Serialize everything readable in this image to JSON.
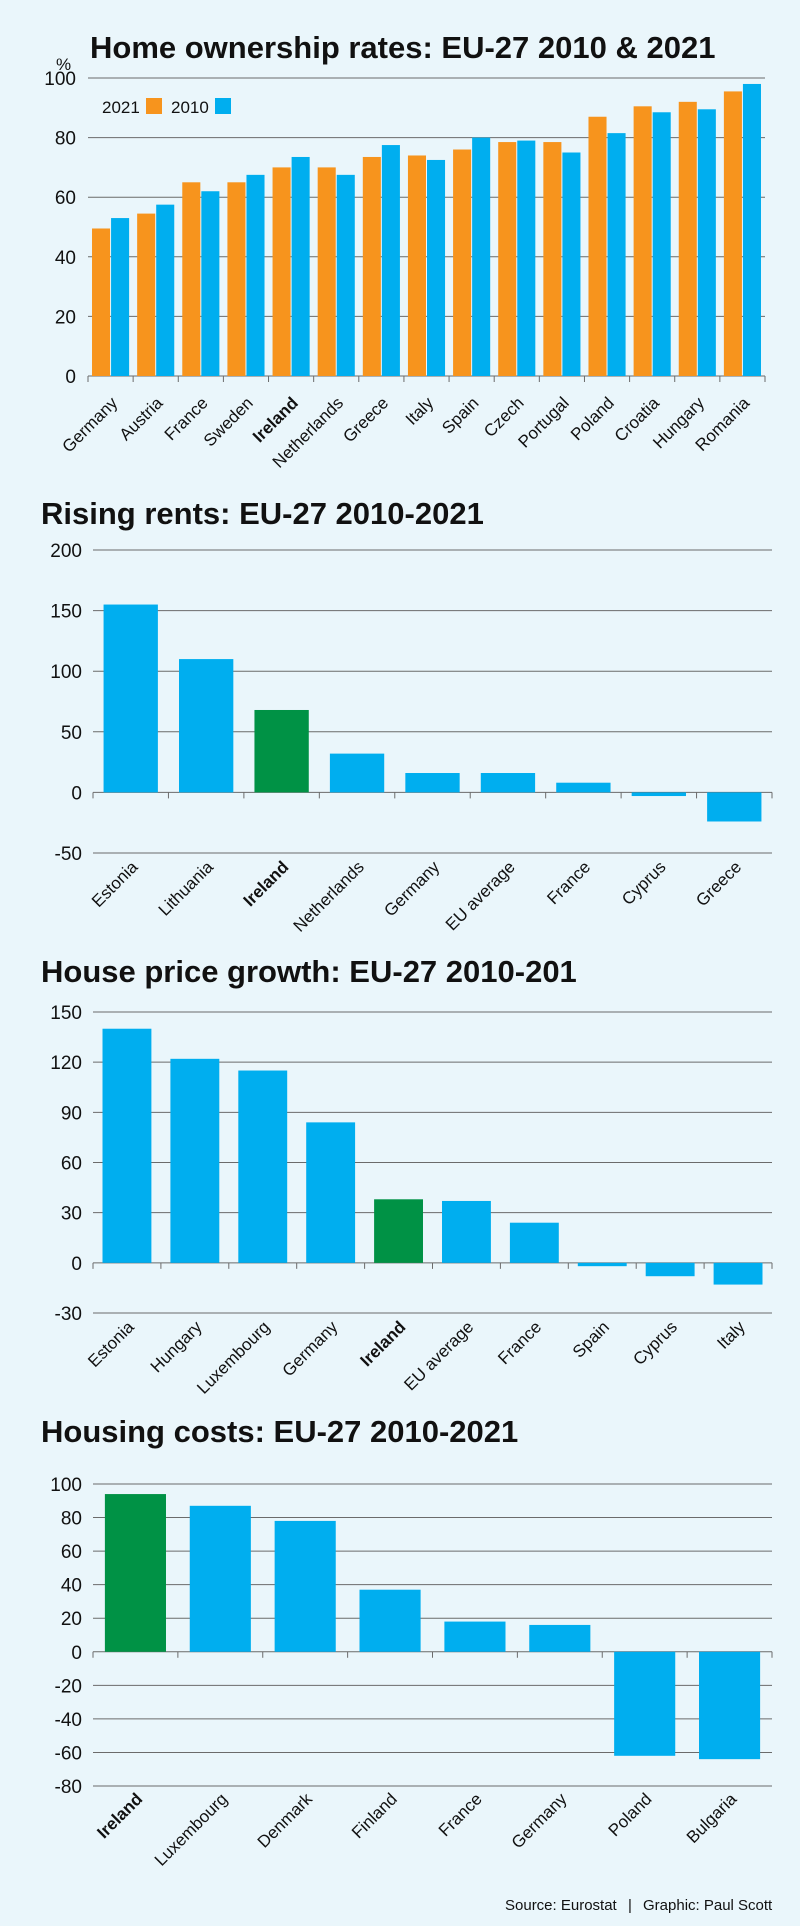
{
  "colors": {
    "background": "#eaf6fb",
    "series_2021": "#f7941d",
    "series_2010": "#00aeef",
    "ireland_highlight": "#009245"
  },
  "chart_data": [
    {
      "id": "ownership",
      "type": "bar",
      "title": "Home ownership rates: EU-27 2010 & 2021",
      "unit_label": "%",
      "ylim": [
        0,
        100
      ],
      "yticks": [
        0,
        20,
        40,
        60,
        80,
        100
      ],
      "legend_position": "top-left",
      "categories": [
        "Germany",
        "Austria",
        "France",
        "Sweden",
        "Ireland",
        "Netherlands",
        "Greece",
        "Italy",
        "Spain",
        "Czech",
        "Portugal",
        "Poland",
        "Croatia",
        "Hungary",
        "Romania"
      ],
      "bold_categories": [
        "Ireland"
      ],
      "series": [
        {
          "name": "2021",
          "values": [
            49.5,
            54.5,
            65,
            65,
            70,
            70,
            73.5,
            74,
            76,
            78.5,
            78.5,
            87,
            90.5,
            92,
            95.5
          ]
        },
        {
          "name": "2010",
          "values": [
            53,
            57.5,
            62,
            67.5,
            73.5,
            67.5,
            77.5,
            72.5,
            80,
            79,
            75,
            81.5,
            88.5,
            89.5,
            98
          ]
        }
      ]
    },
    {
      "id": "rents",
      "type": "bar",
      "title": "Rising rents: EU-27 2010-2021",
      "ylim": [
        -50,
        200
      ],
      "yticks": [
        -50,
        0,
        50,
        100,
        150,
        200
      ],
      "categories": [
        "Estonia",
        "Lithuania",
        "Ireland",
        "Netherlands",
        "Germany",
        "EU average",
        "France",
        "Cyprus",
        "Greece"
      ],
      "bold_categories": [
        "Ireland"
      ],
      "highlight_categories": [
        "Ireland"
      ],
      "values": [
        155,
        110,
        68,
        32,
        16,
        16,
        8,
        -3,
        -24
      ]
    },
    {
      "id": "prices",
      "type": "bar",
      "title": "House price growth: EU-27 2010-201",
      "ylim": [
        -30,
        150
      ],
      "yticks": [
        -30,
        0,
        30,
        60,
        90,
        120,
        150
      ],
      "categories": [
        "Estonia",
        "Hungary",
        "Luxembourg",
        "Germany",
        "Ireland",
        "EU average",
        "France",
        "Spain",
        "Cyprus",
        "Italy"
      ],
      "bold_categories": [
        "Ireland"
      ],
      "highlight_categories": [
        "Ireland"
      ],
      "values": [
        140,
        122,
        115,
        84,
        38,
        37,
        24,
        -2,
        -8,
        -13
      ]
    },
    {
      "id": "costs",
      "type": "bar",
      "title": "Housing costs: EU-27 2010-2021",
      "ylim": [
        -80,
        100
      ],
      "yticks": [
        -80,
        -60,
        -40,
        -20,
        0,
        20,
        40,
        60,
        80,
        100
      ],
      "categories": [
        "Ireland",
        "Luxembourg",
        "Denmark",
        "Finland",
        "France",
        "Germany",
        "Poland",
        "Bulgaria"
      ],
      "bold_categories": [
        "Ireland"
      ],
      "highlight_categories": [
        "Ireland"
      ],
      "values": [
        94,
        87,
        78,
        37,
        18,
        16,
        -62,
        -64
      ]
    }
  ],
  "footer": {
    "source": "Source: Eurostat",
    "separator": "|",
    "graphic": "Graphic: Paul Scott"
  }
}
